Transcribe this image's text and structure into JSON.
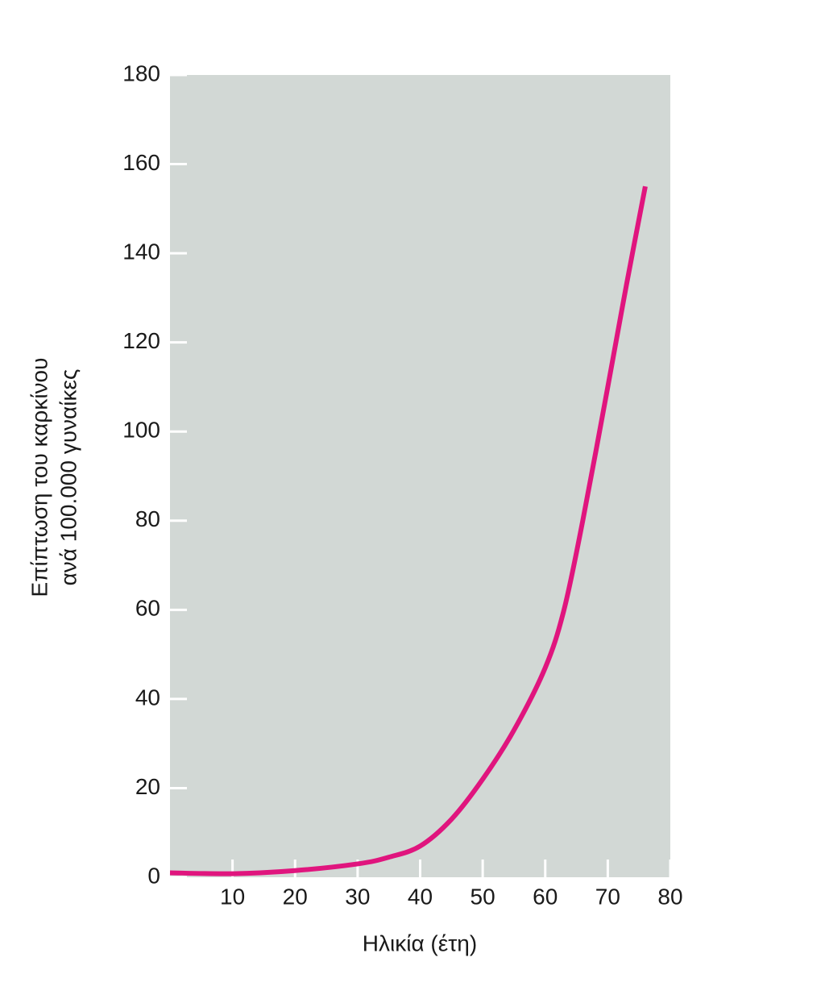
{
  "chart_data": {
    "type": "line",
    "xlabel": "Ηλικία (έτη)",
    "ylabel": [
      "Επίπτωση του καρκίνου",
      "ανά 100.000 γυναίκες"
    ],
    "x": [
      0,
      10,
      20,
      30,
      35,
      40,
      45,
      50,
      55,
      60,
      63,
      66,
      70,
      73,
      76
    ],
    "series": [
      {
        "color": "#e0157e",
        "values": [
          1,
          0.8,
          1.5,
          3,
          4.5,
          7,
          13,
          22,
          33,
          47,
          60,
          80,
          110,
          133,
          155
        ]
      }
    ],
    "xlim": [
      0,
      80
    ],
    "xticks": [
      10,
      20,
      30,
      40,
      50,
      60,
      70,
      80
    ],
    "ylim": [
      0,
      180
    ],
    "yticks": [
      0,
      20,
      40,
      60,
      80,
      100,
      120,
      140,
      160,
      180
    ],
    "plot_background": "#d2d8d5",
    "grid": false
  }
}
